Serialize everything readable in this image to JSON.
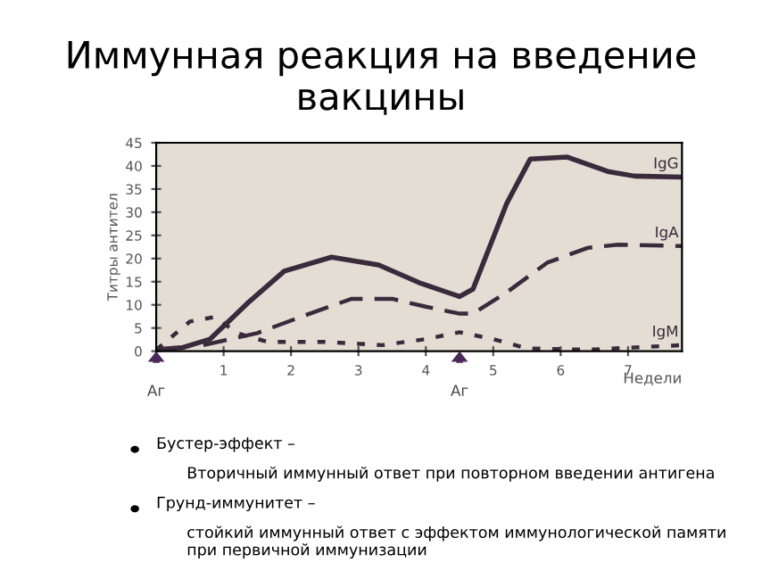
{
  "chart_data": {
    "type": "line",
    "title": "Иммунная реакция на введение вакцины",
    "ylabel": "Титры антител",
    "xlabel": "Недели",
    "xlim": [
      0,
      7.8
    ],
    "xticks": [
      1,
      2,
      3,
      4,
      5,
      6,
      7
    ],
    "ylim": [
      0,
      45
    ],
    "yticks": [
      0,
      5,
      10,
      15,
      20,
      25,
      30,
      35,
      40,
      45
    ],
    "grid": false,
    "legend": false,
    "marker": "none",
    "series": [
      {
        "name": "IgG",
        "color": "#3a2a3c",
        "line_style": "solid",
        "x": [
          0,
          0.4,
          0.8,
          1.35,
          1.9,
          2.6,
          3.3,
          3.9,
          4.5,
          4.7,
          5.2,
          5.55,
          6.1,
          6.7,
          7.1,
          7.8
        ],
        "values": [
          0.3,
          0.8,
          2.6,
          10.3,
          17.3,
          20.3,
          18.6,
          14.8,
          11.8,
          13.4,
          31.9,
          41.5,
          41.9,
          38.8,
          37.8,
          37.6
        ]
      },
      {
        "name": "IgA",
        "color": "#3a2a3c",
        "line_style": "dashed",
        "x": [
          0.7,
          1.5,
          2.2,
          2.9,
          3.5,
          4.0,
          4.5,
          4.7,
          5.2,
          5.8,
          6.4,
          6.85,
          7.8
        ],
        "values": [
          1.3,
          3.9,
          7.7,
          11.3,
          11.3,
          9.6,
          8.1,
          8.1,
          12.7,
          19.1,
          22.3,
          23,
          22.7
        ]
      },
      {
        "name": "IgM",
        "color": "#3a2a3c",
        "line_style": "dotted",
        "x": [
          0,
          0.5,
          0.87,
          1.2,
          1.65,
          2.5,
          3.35,
          4.0,
          4.5,
          5.0,
          5.5,
          6.4,
          7.8
        ],
        "values": [
          0.3,
          6.4,
          7.4,
          3.9,
          2,
          2,
          1.3,
          2.6,
          4.1,
          2.6,
          0.6,
          0.3,
          1.3
        ]
      }
    ],
    "annotations": [
      "Аг",
      "Аг",
      "Бустер-эффект –",
      "Вторичный иммунный ответ при повторном введении антигена",
      "Грунд-иммунитет –",
      "стойкий иммунный ответ с эффектом иммунологической памяти при первичной иммунизации"
    ]
  }
}
